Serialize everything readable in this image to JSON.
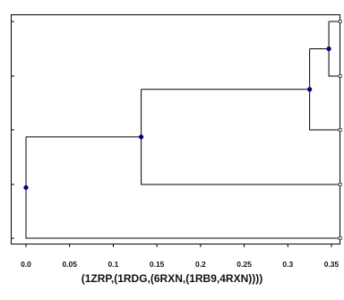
{
  "diagram": {
    "type": "phylogenetic-tree",
    "newick": "(1ZRP,(1RDG,(6RXN,(1RB9,4RXN))))",
    "x_axis": {
      "ticks": [
        0.0,
        0.05,
        0.1,
        0.15,
        0.2,
        0.25,
        0.3,
        0.35
      ],
      "tick_labels": [
        "0.0",
        "0.05",
        "0.1",
        "0.15",
        "0.2",
        "0.25",
        "0.3",
        "0.35"
      ],
      "range": [
        -0.02,
        0.36
      ]
    },
    "nodes": [
      {
        "id": "root",
        "x": 0.0
      },
      {
        "id": "n1",
        "x": 0.132
      },
      {
        "id": "n2",
        "x": 0.325
      },
      {
        "id": "n3",
        "x": 0.347
      }
    ],
    "leaves_top_to_bottom": [
      "1RB9",
      "4RXN",
      "6RXN",
      "1RDG",
      "1ZRP"
    ],
    "leaf_x": 0.36,
    "colors": {
      "node": "#000080",
      "branch": "#000000",
      "leaf_marker": "#555555"
    }
  }
}
